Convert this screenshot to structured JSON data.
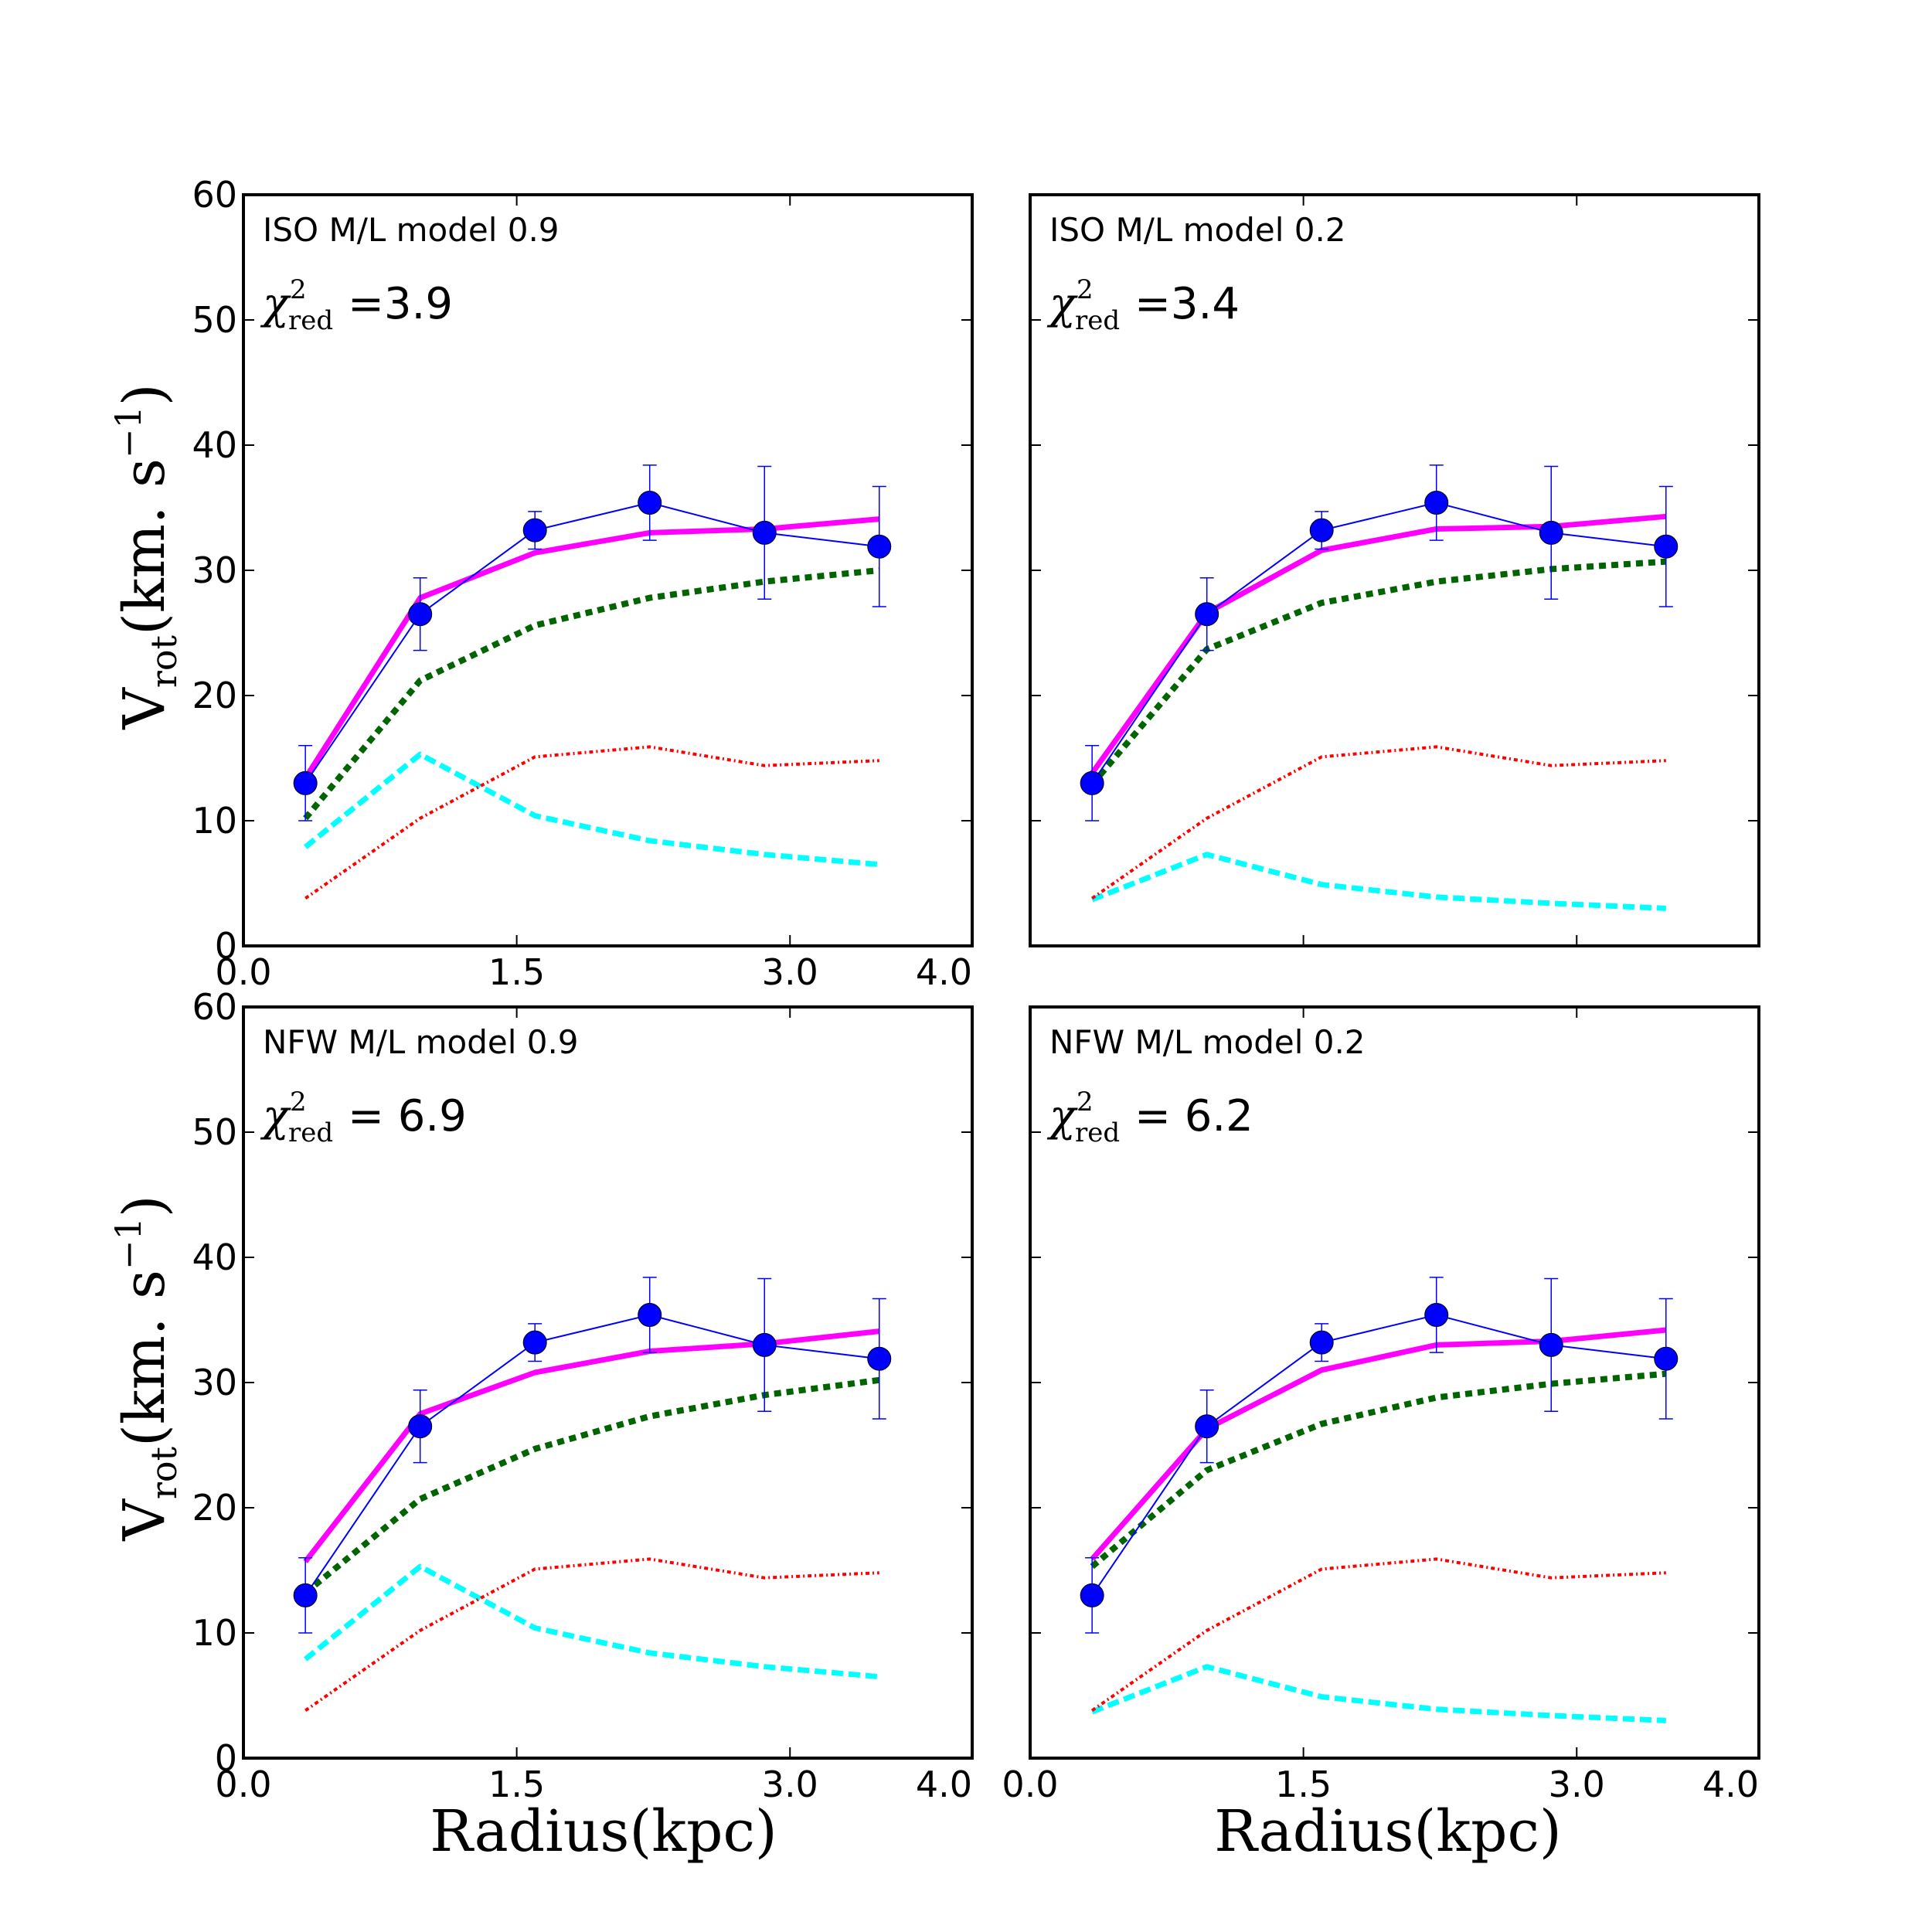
{
  "figure": {
    "ylabel": "V",
    "ylabel_sub": "rot",
    "ylabel_units": "(km. s",
    "ylabel_units_sup": "−1",
    "ylabel_units_close": ")",
    "xlabel": "Radius(kpc)"
  },
  "colors": {
    "observed": "#0000ff",
    "model": "#ff00ff",
    "halo": "#006400",
    "stars": "#00ffff",
    "gas": "#ff0000"
  },
  "chart_data": [
    {
      "type": "line",
      "label": "ISO M/L model 0.9",
      "chi_symbol": "χ",
      "chi_sup": "2",
      "chi_sub": "red",
      "chi_value": "=3.9",
      "xlim": [
        0,
        4.0
      ],
      "ylim": [
        0,
        60
      ],
      "xticks": [
        "0.0",
        "1.5",
        "3.0",
        "4.0"
      ],
      "xtick_values": [
        0,
        1.5,
        3.0,
        4.0
      ],
      "yticks": [
        "0",
        "10",
        "20",
        "30",
        "40",
        "50",
        "60"
      ],
      "ytick_values": [
        0,
        10,
        20,
        30,
        40,
        50,
        60
      ],
      "observed": {
        "x": [
          0.34,
          0.97,
          1.6,
          2.23,
          2.86,
          3.49
        ],
        "y": [
          13.0,
          26.5,
          33.2,
          35.4,
          33.0,
          31.9
        ],
        "err": [
          3.0,
          2.9,
          1.5,
          3.0,
          5.3,
          4.8
        ]
      },
      "series": [
        {
          "key": "model",
          "x": [
            0.34,
            0.97,
            1.6,
            2.23,
            2.86,
            3.49
          ],
          "y": [
            13.4,
            27.8,
            31.4,
            33.0,
            33.3,
            34.1
          ]
        },
        {
          "key": "halo",
          "x": [
            0.34,
            0.97,
            1.6,
            2.23,
            2.86,
            3.49
          ],
          "y": [
            10.2,
            21.2,
            25.6,
            27.8,
            29.1,
            30.0
          ]
        },
        {
          "key": "stars",
          "x": [
            0.34,
            0.97,
            1.6,
            2.23,
            2.86,
            3.49
          ],
          "y": [
            7.9,
            15.3,
            10.4,
            8.4,
            7.3,
            6.5
          ]
        },
        {
          "key": "gas",
          "x": [
            0.34,
            0.97,
            1.6,
            2.23,
            2.86,
            3.49
          ],
          "y": [
            3.8,
            10.2,
            15.1,
            15.9,
            14.4,
            14.8
          ]
        }
      ]
    },
    {
      "type": "line",
      "label": "ISO M/L model 0.2",
      "chi_symbol": "χ",
      "chi_sup": "2",
      "chi_sub": "red",
      "chi_value": "=3.4",
      "xlim": [
        0,
        4.0
      ],
      "ylim": [
        0,
        60
      ],
      "xticks": [],
      "xtick_values": [],
      "yticks": [],
      "ytick_values": [],
      "observed": {
        "x": [
          0.34,
          0.97,
          1.6,
          2.23,
          2.86,
          3.49
        ],
        "y": [
          13.0,
          26.5,
          33.2,
          35.4,
          33.0,
          31.9
        ],
        "err": [
          3.0,
          2.9,
          1.5,
          3.0,
          5.3,
          4.8
        ]
      },
      "series": [
        {
          "key": "model",
          "x": [
            0.34,
            0.97,
            1.6,
            2.23,
            2.86,
            3.49
          ],
          "y": [
            13.8,
            26.6,
            31.6,
            33.3,
            33.5,
            34.3
          ]
        },
        {
          "key": "halo",
          "x": [
            0.34,
            0.97,
            1.6,
            2.23,
            2.86,
            3.49
          ],
          "y": [
            12.9,
            23.7,
            27.4,
            29.1,
            30.1,
            30.7
          ]
        },
        {
          "key": "stars",
          "x": [
            0.34,
            0.97,
            1.6,
            2.23,
            2.86,
            3.49
          ],
          "y": [
            3.7,
            7.3,
            4.9,
            3.9,
            3.4,
            3.0
          ]
        },
        {
          "key": "gas",
          "x": [
            0.34,
            0.97,
            1.6,
            2.23,
            2.86,
            3.49
          ],
          "y": [
            3.8,
            10.2,
            15.1,
            15.9,
            14.4,
            14.8
          ]
        }
      ]
    },
    {
      "type": "line",
      "label": "NFW M/L model 0.9",
      "chi_symbol": "χ",
      "chi_sup": "2",
      "chi_sub": "red",
      "chi_value": "= 6.9",
      "xlim": [
        0,
        4.0
      ],
      "ylim": [
        0,
        60
      ],
      "xticks": [
        "0.0",
        "1.5",
        "3.0",
        "4.0"
      ],
      "xtick_values": [
        0,
        1.5,
        3.0,
        4.0
      ],
      "yticks": [
        "0",
        "10",
        "20",
        "30",
        "40",
        "50",
        "60"
      ],
      "ytick_values": [
        0,
        10,
        20,
        30,
        40,
        50,
        60
      ],
      "observed": {
        "x": [
          0.34,
          0.97,
          1.6,
          2.23,
          2.86,
          3.49
        ],
        "y": [
          13.0,
          26.5,
          33.2,
          35.4,
          33.0,
          31.9
        ],
        "err": [
          3.0,
          2.9,
          1.5,
          3.0,
          5.3,
          4.8
        ]
      },
      "series": [
        {
          "key": "model",
          "x": [
            0.34,
            0.97,
            1.6,
            2.23,
            2.86,
            3.49
          ],
          "y": [
            15.7,
            27.5,
            30.8,
            32.5,
            33.1,
            34.1
          ]
        },
        {
          "key": "halo",
          "x": [
            0.34,
            0.97,
            1.6,
            2.23,
            2.86,
            3.49
          ],
          "y": [
            13.2,
            20.7,
            24.7,
            27.3,
            29.0,
            30.2
          ]
        },
        {
          "key": "stars",
          "x": [
            0.34,
            0.97,
            1.6,
            2.23,
            2.86,
            3.49
          ],
          "y": [
            7.9,
            15.3,
            10.4,
            8.4,
            7.3,
            6.5
          ]
        },
        {
          "key": "gas",
          "x": [
            0.34,
            0.97,
            1.6,
            2.23,
            2.86,
            3.49
          ],
          "y": [
            3.8,
            10.2,
            15.1,
            15.9,
            14.4,
            14.8
          ]
        }
      ]
    },
    {
      "type": "line",
      "label": "NFW M/L model 0.2",
      "chi_symbol": "χ",
      "chi_sup": "2",
      "chi_sub": "red",
      "chi_value": "= 6.2",
      "xlim": [
        0,
        4.0
      ],
      "ylim": [
        0,
        60
      ],
      "xticks": [
        "0.0",
        "1.5",
        "3.0",
        "4.0"
      ],
      "xtick_values": [
        0,
        1.5,
        3.0,
        4.0
      ],
      "yticks": [],
      "ytick_values": [],
      "observed": {
        "x": [
          0.34,
          0.97,
          1.6,
          2.23,
          2.86,
          3.49
        ],
        "y": [
          13.0,
          26.5,
          33.2,
          35.4,
          33.0,
          31.9
        ],
        "err": [
          3.0,
          2.9,
          1.5,
          3.0,
          5.3,
          4.8
        ]
      },
      "series": [
        {
          "key": "model",
          "x": [
            0.34,
            0.97,
            1.6,
            2.23,
            2.86,
            3.49
          ],
          "y": [
            15.9,
            26.3,
            31.0,
            33.0,
            33.3,
            34.2
          ]
        },
        {
          "key": "halo",
          "x": [
            0.34,
            0.97,
            1.6,
            2.23,
            2.86,
            3.49
          ],
          "y": [
            15.3,
            23.0,
            26.7,
            28.8,
            29.9,
            30.7
          ]
        },
        {
          "key": "stars",
          "x": [
            0.34,
            0.97,
            1.6,
            2.23,
            2.86,
            3.49
          ],
          "y": [
            3.7,
            7.3,
            4.9,
            3.9,
            3.4,
            3.0
          ]
        },
        {
          "key": "gas",
          "x": [
            0.34,
            0.97,
            1.6,
            2.23,
            2.86,
            3.49
          ],
          "y": [
            3.8,
            10.2,
            15.1,
            15.9,
            14.4,
            14.8
          ]
        }
      ]
    }
  ]
}
